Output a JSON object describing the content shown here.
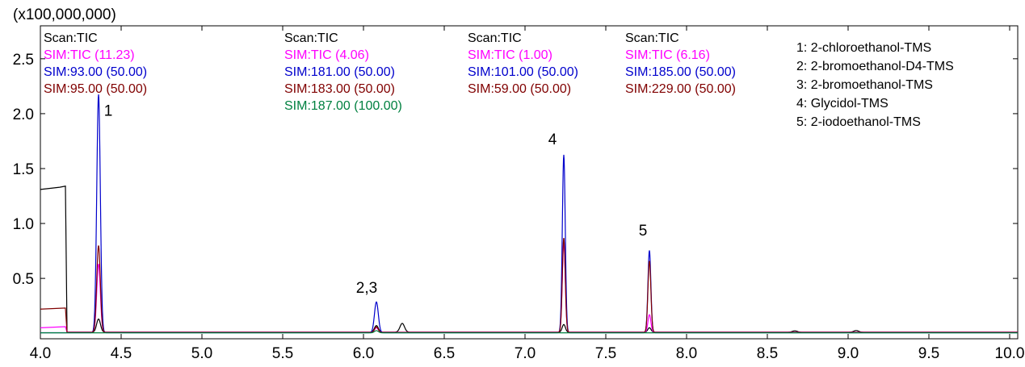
{
  "chart_data": {
    "type": "line",
    "title": "",
    "xlabel": "",
    "ylabel": "",
    "y_multiplier_label": "(x100,000,000)",
    "xlim": [
      4.0,
      10.05
    ],
    "ylim": [
      -0.05,
      2.8
    ],
    "x_ticks": [
      "4.0",
      "4.5",
      "5.0",
      "5.5",
      "6.0",
      "6.5",
      "7.0",
      "7.5",
      "8.0",
      "8.5",
      "9.0",
      "9.5",
      "10.0"
    ],
    "y_ticks": [
      "0.5",
      "1.0",
      "1.5",
      "2.0",
      "2.5"
    ],
    "grid": false,
    "scan_groups": [
      {
        "lines": [
          {
            "text": "Scan:TIC",
            "color": "#000000"
          },
          {
            "text": "SIM:TIC (11.23)",
            "color": "#ff00ff"
          },
          {
            "text": "SIM:93.00 (50.00)",
            "color": "#0000cc"
          },
          {
            "text": "SIM:95.00 (50.00)",
            "color": "#800000"
          }
        ]
      },
      {
        "lines": [
          {
            "text": "Scan:TIC",
            "color": "#000000"
          },
          {
            "text": "SIM:TIC (4.06)",
            "color": "#ff00ff"
          },
          {
            "text": "SIM:181.00 (50.00)",
            "color": "#0000cc"
          },
          {
            "text": "SIM:183.00 (50.00)",
            "color": "#800000"
          },
          {
            "text": "SIM:187.00 (100.00)",
            "color": "#008040"
          }
        ]
      },
      {
        "lines": [
          {
            "text": "Scan:TIC",
            "color": "#000000"
          },
          {
            "text": "SIM:TIC (1.00)",
            "color": "#ff00ff"
          },
          {
            "text": "SIM:101.00 (50.00)",
            "color": "#0000cc"
          },
          {
            "text": "SIM:59.00 (50.00)",
            "color": "#800000"
          }
        ]
      },
      {
        "lines": [
          {
            "text": "Scan:TIC",
            "color": "#000000"
          },
          {
            "text": "SIM:TIC (6.16)",
            "color": "#ff00ff"
          },
          {
            "text": "SIM:185.00 (50.00)",
            "color": "#0000cc"
          },
          {
            "text": "SIM:229.00 (50.00)",
            "color": "#800000"
          }
        ]
      }
    ],
    "compound_legend": [
      "1: 2-chloroethanol-TMS",
      "2: 2-bromoethanol-D4-TMS",
      "3: 2-bromoethanol-TMS",
      "4: Glycidol-TMS",
      "5: 2-iodoethanol-TMS"
    ],
    "peak_labels": [
      {
        "text": "1",
        "x": 4.42,
        "y": 1.98
      },
      {
        "text": "2,3",
        "x": 6.02,
        "y": 0.37
      },
      {
        "text": "4",
        "x": 7.17,
        "y": 1.72
      },
      {
        "text": "5",
        "x": 7.73,
        "y": 0.89
      }
    ],
    "series": [
      {
        "key": "scan_tic",
        "color": "#000000",
        "baseline": 0.01,
        "segments": [
          {
            "x": 4.0,
            "y": 1.31
          },
          {
            "x": 4.06,
            "y": 1.32
          },
          {
            "x": 4.12,
            "y": 1.33
          },
          {
            "x": 4.155,
            "y": 1.34
          },
          {
            "x": 4.165,
            "y": 0.01
          }
        ],
        "peaks": [
          {
            "x": 4.36,
            "h": 0.12,
            "w": 0.012
          },
          {
            "x": 6.08,
            "h": 0.06,
            "w": 0.012
          },
          {
            "x": 6.24,
            "h": 0.08,
            "w": 0.014
          },
          {
            "x": 7.24,
            "h": 0.07,
            "w": 0.01
          },
          {
            "x": 7.77,
            "h": 0.04,
            "w": 0.01
          },
          {
            "x": 8.67,
            "h": 0.012,
            "w": 0.015
          },
          {
            "x": 9.05,
            "h": 0.015,
            "w": 0.015
          }
        ]
      },
      {
        "key": "sim_tic",
        "color": "#ff00ff",
        "baseline": 0.01,
        "segments": [
          {
            "x": 4.0,
            "y": 0.05
          },
          {
            "x": 4.155,
            "y": 0.06
          },
          {
            "x": 4.165,
            "y": 0.01
          }
        ],
        "peaks": [
          {
            "x": 4.36,
            "h": 0.62,
            "w": 0.011
          },
          {
            "x": 6.08,
            "h": 0.04,
            "w": 0.011
          },
          {
            "x": 7.24,
            "h": 0.82,
            "w": 0.009
          },
          {
            "x": 7.77,
            "h": 0.16,
            "w": 0.009
          }
        ]
      },
      {
        "key": "sim_blue",
        "color": "#0000cc",
        "baseline": 0.005,
        "segments": [],
        "peaks": [
          {
            "x": 4.36,
            "h": 2.17,
            "w": 0.011
          },
          {
            "x": 6.08,
            "h": 0.28,
            "w": 0.012
          },
          {
            "x": 7.24,
            "h": 1.62,
            "w": 0.009
          },
          {
            "x": 7.77,
            "h": 0.75,
            "w": 0.009
          }
        ]
      },
      {
        "key": "sim_darkred",
        "color": "#800000",
        "baseline": 0.008,
        "segments": [
          {
            "x": 4.0,
            "y": 0.22
          },
          {
            "x": 4.155,
            "y": 0.23
          },
          {
            "x": 4.165,
            "y": 0.008
          }
        ],
        "peaks": [
          {
            "x": 4.36,
            "h": 0.79,
            "w": 0.011
          },
          {
            "x": 6.08,
            "h": 0.05,
            "w": 0.011
          },
          {
            "x": 7.24,
            "h": 0.86,
            "w": 0.009
          },
          {
            "x": 7.77,
            "h": 0.65,
            "w": 0.009
          }
        ]
      },
      {
        "key": "sim_green",
        "color": "#008040",
        "baseline": 0.004,
        "segments": [],
        "peaks": [
          {
            "x": 6.08,
            "h": 0.02,
            "w": 0.012
          }
        ]
      }
    ]
  }
}
